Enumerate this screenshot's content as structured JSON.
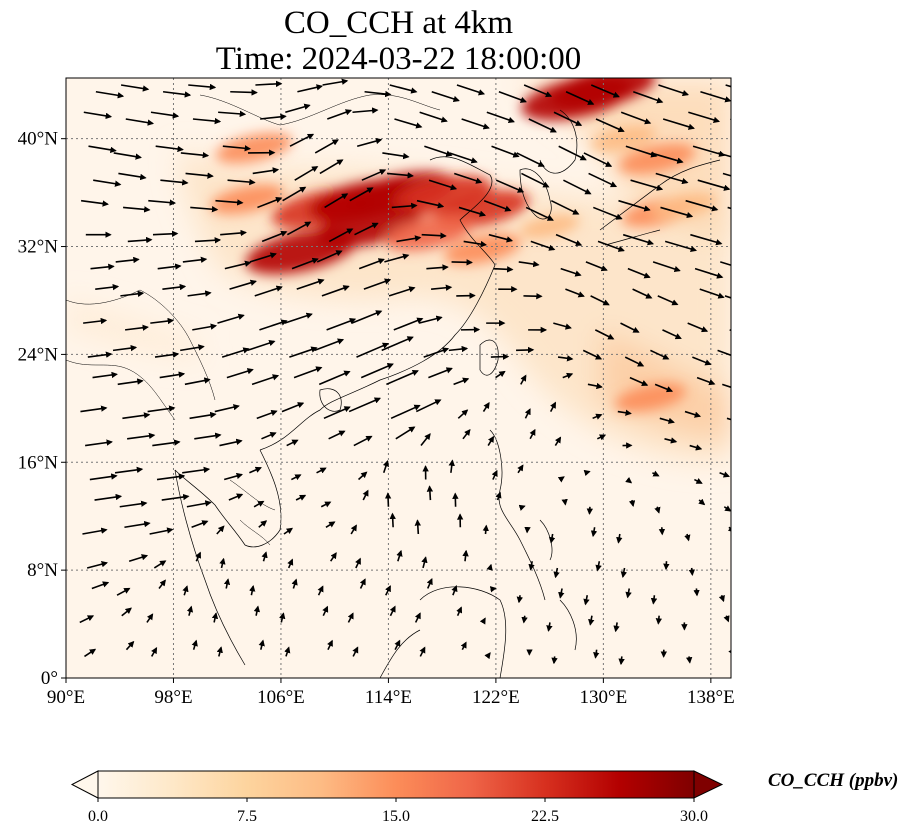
{
  "title": "CO_CCH at 4km",
  "subtitle": "Time: 2024-03-22 18:00:00",
  "map": {
    "projection": "PlateCarree",
    "lon_range": [
      90,
      139.5
    ],
    "lat_range": [
      0,
      44.5
    ],
    "lon_ticks": [
      "90°E",
      "98°E",
      "106°E",
      "114°E",
      "122°E",
      "130°E",
      "138°E"
    ],
    "lat_ticks": [
      "0°",
      "8°N",
      "16°N",
      "24°N",
      "32°N",
      "40°N"
    ],
    "gridlines": true
  },
  "colorbar": {
    "label": "CO_CCH (ppbv)",
    "ticks": [
      "0.0",
      "7.5",
      "15.0",
      "22.5",
      "30.0"
    ],
    "min": 0,
    "max": 30,
    "colormap": "OrRd",
    "extend": "both",
    "colors": [
      "#fff7ec",
      "#fee8c8",
      "#fdd49e",
      "#fdbb84",
      "#fc8d59",
      "#ef6548",
      "#d7301f",
      "#b30000",
      "#7f0000"
    ]
  },
  "plumes": [
    {
      "lon": 104,
      "lat": 39.3,
      "value": 16
    },
    {
      "lon": 103.5,
      "lat": 35.5,
      "value": 15
    },
    {
      "lon": 109,
      "lat": 34.8,
      "value": 24
    },
    {
      "lon": 112,
      "lat": 35.4,
      "value": 26
    },
    {
      "lon": 115,
      "lat": 36.0,
      "value": 26
    },
    {
      "lon": 118,
      "lat": 35.8,
      "value": 24
    },
    {
      "lon": 121,
      "lat": 34.8,
      "value": 22
    },
    {
      "lon": 107.5,
      "lat": 31.6,
      "value": 28
    },
    {
      "lon": 112.5,
      "lat": 33.5,
      "value": 26
    },
    {
      "lon": 117,
      "lat": 33.0,
      "value": 20
    },
    {
      "lon": 121,
      "lat": 31.8,
      "value": 16
    },
    {
      "lon": 126,
      "lat": 33.5,
      "value": 10
    },
    {
      "lon": 128,
      "lat": 43.0,
      "value": 28
    },
    {
      "lon": 130,
      "lat": 43.8,
      "value": 26
    },
    {
      "lon": 131.5,
      "lat": 40.0,
      "value": 12
    },
    {
      "lon": 134,
      "lat": 38.5,
      "value": 16
    },
    {
      "lon": 134,
      "lat": 34.5,
      "value": 14
    },
    {
      "lon": 136,
      "lat": 35.0,
      "value": 12
    },
    {
      "lon": 133.5,
      "lat": 20.8,
      "value": 14
    }
  ],
  "wind_field": {
    "note_units": "degrees / relative magnitude",
    "samples": [
      {
        "lon": 93,
        "lat": 40,
        "u": 3,
        "v": -0.5
      },
      {
        "lon": 100,
        "lat": 38,
        "u": 3,
        "v": -0.3
      },
      {
        "lon": 108,
        "lat": 36,
        "u": 2.5,
        "v": 1.5
      },
      {
        "lon": 118,
        "lat": 40,
        "u": 3,
        "v": -1
      },
      {
        "lon": 126,
        "lat": 38,
        "u": 3,
        "v": -1.5
      },
      {
        "lon": 134,
        "lat": 36,
        "u": 3.5,
        "v": -1
      },
      {
        "lon": 96,
        "lat": 28,
        "u": 2.5,
        "v": 0.3
      },
      {
        "lon": 105,
        "lat": 26,
        "u": 3,
        "v": 1
      },
      {
        "lon": 112,
        "lat": 22,
        "u": 3.5,
        "v": 1.5
      },
      {
        "lon": 122,
        "lat": 26,
        "u": 2,
        "v": 0
      },
      {
        "lon": 130,
        "lat": 26,
        "u": 2,
        "v": -1
      },
      {
        "lon": 96,
        "lat": 16,
        "u": 3,
        "v": 0.4
      },
      {
        "lon": 108,
        "lat": 14,
        "u": 1,
        "v": 0.5
      },
      {
        "lon": 116,
        "lat": 12,
        "u": -0.1,
        "v": 1.5
      },
      {
        "lon": 114,
        "lat": 6,
        "u": 0.5,
        "v": 1
      },
      {
        "lon": 124,
        "lat": 20,
        "u": 0.5,
        "v": 1
      },
      {
        "lon": 103,
        "lat": 6,
        "u": 0.2,
        "v": 1
      },
      {
        "lon": 128,
        "lat": 8,
        "u": -0.2,
        "v": -1
      }
    ]
  }
}
